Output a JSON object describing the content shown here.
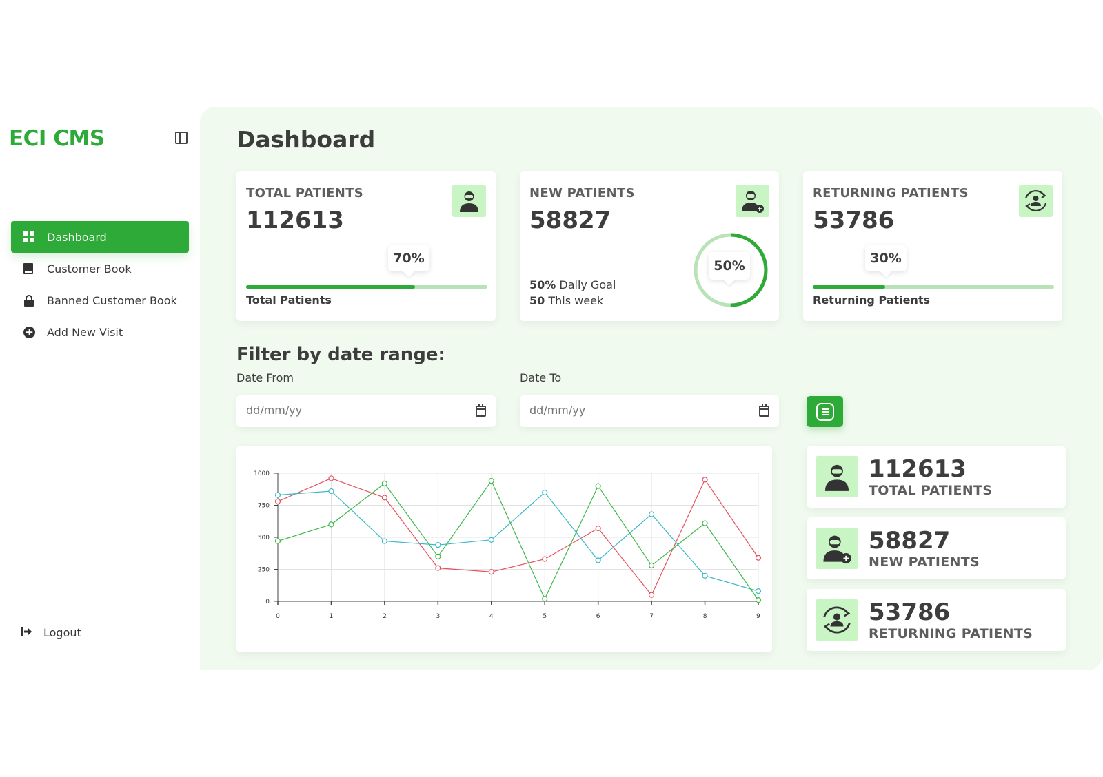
{
  "app": {
    "logo": "ECI CMS"
  },
  "sidebar": {
    "items": [
      {
        "label": "Dashboard",
        "icon": "dashboard-grid-icon",
        "active": true
      },
      {
        "label": "Customer Book",
        "icon": "book-icon",
        "active": false
      },
      {
        "label": "Banned Customer Book",
        "icon": "lock-icon",
        "active": false
      },
      {
        "label": "Add New Visit",
        "icon": "add-circle-icon",
        "active": false
      }
    ],
    "logout": "Logout"
  },
  "page": {
    "title": "Dashboard"
  },
  "stats": {
    "total": {
      "label": "TOTAL PATIENTS",
      "value": "112613",
      "percent_label": "70%",
      "percent": 0.7,
      "footer": "Total Patients",
      "icon": "patient-icon"
    },
    "new": {
      "label": "NEW PATIENTS",
      "value": "58827",
      "percent_label": "50%",
      "percent": 0.5,
      "goal_pct": "50%",
      "goal_text": "Daily Goal",
      "week_num": "50",
      "week_text": "This week",
      "icon": "new-patient-icon"
    },
    "returning": {
      "label": "RETURNING PATIENTS",
      "value": "53786",
      "percent_label": "30%",
      "percent": 0.3,
      "footer": "Returning Patients",
      "icon": "returning-patient-icon"
    }
  },
  "filter": {
    "title": "Filter by date range:",
    "from_label": "Date From",
    "to_label": "Date To",
    "from_placeholder": "dd/mm/yy",
    "to_placeholder": "dd/mm/yy"
  },
  "summary": [
    {
      "value": "112613",
      "label": "TOTAL PATIENTS",
      "icon": "patient-icon"
    },
    {
      "value": "58827",
      "label": "NEW PATIENTS",
      "icon": "new-patient-icon"
    },
    {
      "value": "53786",
      "label": "RETURNING PATIENTS",
      "icon": "returning-patient-icon"
    }
  ],
  "colors": {
    "accent": "#2eaa38",
    "accent_light": "#c9f5c5",
    "background": "#f0faef"
  },
  "chart_data": {
    "type": "line",
    "x": [
      0,
      1,
      2,
      3,
      4,
      5,
      6,
      7,
      8,
      9
    ],
    "ylim": [
      0,
      1000
    ],
    "yticks": [
      0,
      250,
      500,
      750,
      1000
    ],
    "grid": true,
    "series": [
      {
        "color": "#e8505b",
        "values": [
          780,
          960,
          810,
          260,
          230,
          330,
          570,
          50,
          950,
          340
        ]
      },
      {
        "color": "#3bb9c9",
        "values": [
          830,
          860,
          470,
          440,
          480,
          850,
          320,
          680,
          200,
          80
        ]
      },
      {
        "color": "#3fb94a",
        "values": [
          470,
          600,
          920,
          350,
          940,
          20,
          900,
          280,
          610,
          10
        ]
      }
    ]
  }
}
